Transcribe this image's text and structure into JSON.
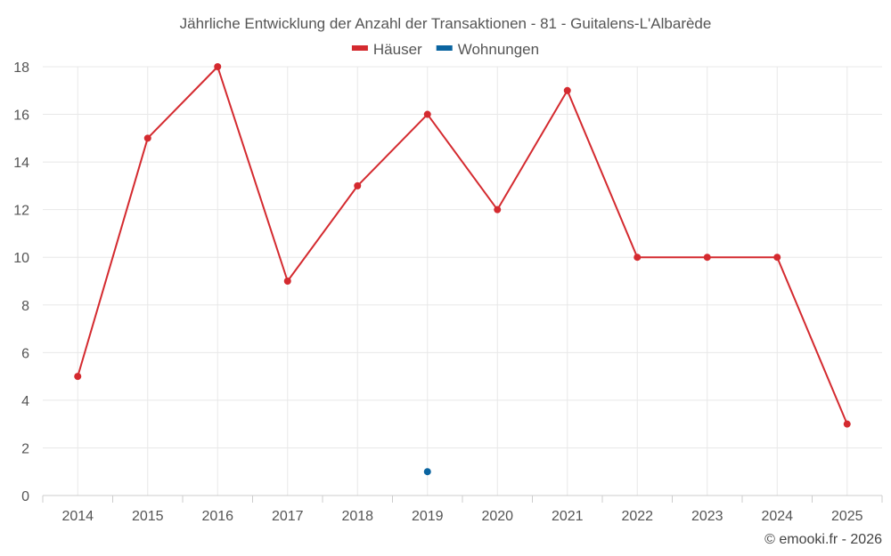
{
  "chart_data": {
    "type": "line",
    "title": "Jährliche Entwicklung der Anzahl der Transaktionen - 81 - Guitalens-L'Albarède",
    "categories": [
      "2014",
      "2015",
      "2016",
      "2017",
      "2018",
      "2019",
      "2020",
      "2021",
      "2022",
      "2023",
      "2024",
      "2025"
    ],
    "series": [
      {
        "name": "Häuser",
        "color": "#d42a2f",
        "values": [
          5,
          15,
          18,
          9,
          13,
          16,
          12,
          17,
          10,
          10,
          10,
          3
        ]
      },
      {
        "name": "Wohnungen",
        "color": "#0a64a0",
        "values": [
          null,
          null,
          null,
          null,
          null,
          1,
          null,
          null,
          null,
          null,
          null,
          null
        ]
      }
    ],
    "xlabel": "",
    "ylabel": "",
    "ylim": [
      0,
      18
    ],
    "yticks": [
      0,
      2,
      4,
      6,
      8,
      10,
      12,
      14,
      16,
      18
    ],
    "grid": true,
    "legend_position": "top-center"
  },
  "credit": "© emooki.fr - 2026"
}
